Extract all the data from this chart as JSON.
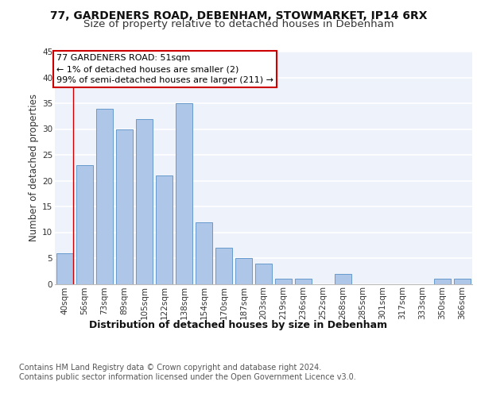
{
  "title": "77, GARDENERS ROAD, DEBENHAM, STOWMARKET, IP14 6RX",
  "subtitle": "Size of property relative to detached houses in Debenham",
  "xlabel": "Distribution of detached houses by size in Debenham",
  "ylabel": "Number of detached properties",
  "footer_line1": "Contains HM Land Registry data © Crown copyright and database right 2024.",
  "footer_line2": "Contains public sector information licensed under the Open Government Licence v3.0.",
  "bar_labels": [
    "40sqm",
    "56sqm",
    "73sqm",
    "89sqm",
    "105sqm",
    "122sqm",
    "138sqm",
    "154sqm",
    "170sqm",
    "187sqm",
    "203sqm",
    "219sqm",
    "236sqm",
    "252sqm",
    "268sqm",
    "285sqm",
    "301sqm",
    "317sqm",
    "333sqm",
    "350sqm",
    "366sqm"
  ],
  "bar_values": [
    6,
    23,
    34,
    30,
    32,
    21,
    35,
    12,
    7,
    5,
    4,
    1,
    1,
    0,
    2,
    0,
    0,
    0,
    0,
    1,
    1
  ],
  "bar_color": "#aec6e8",
  "bar_edge_color": "#6699cc",
  "bg_color": "#eef2fb",
  "grid_color": "#ffffff",
  "annotation_text": "77 GARDENERS ROAD: 51sqm\n← 1% of detached houses are smaller (2)\n99% of semi-detached houses are larger (211) →",
  "annotation_box_color": "#ffffff",
  "annotation_box_edge": "#cc0000",
  "ylim": [
    0,
    45
  ],
  "yticks": [
    0,
    5,
    10,
    15,
    20,
    25,
    30,
    35,
    40,
    45
  ],
  "title_fontsize": 10,
  "subtitle_fontsize": 9.5,
  "annotation_fontsize": 8,
  "xlabel_fontsize": 9,
  "ylabel_fontsize": 8.5,
  "footer_fontsize": 7,
  "tick_fontsize": 7.5
}
